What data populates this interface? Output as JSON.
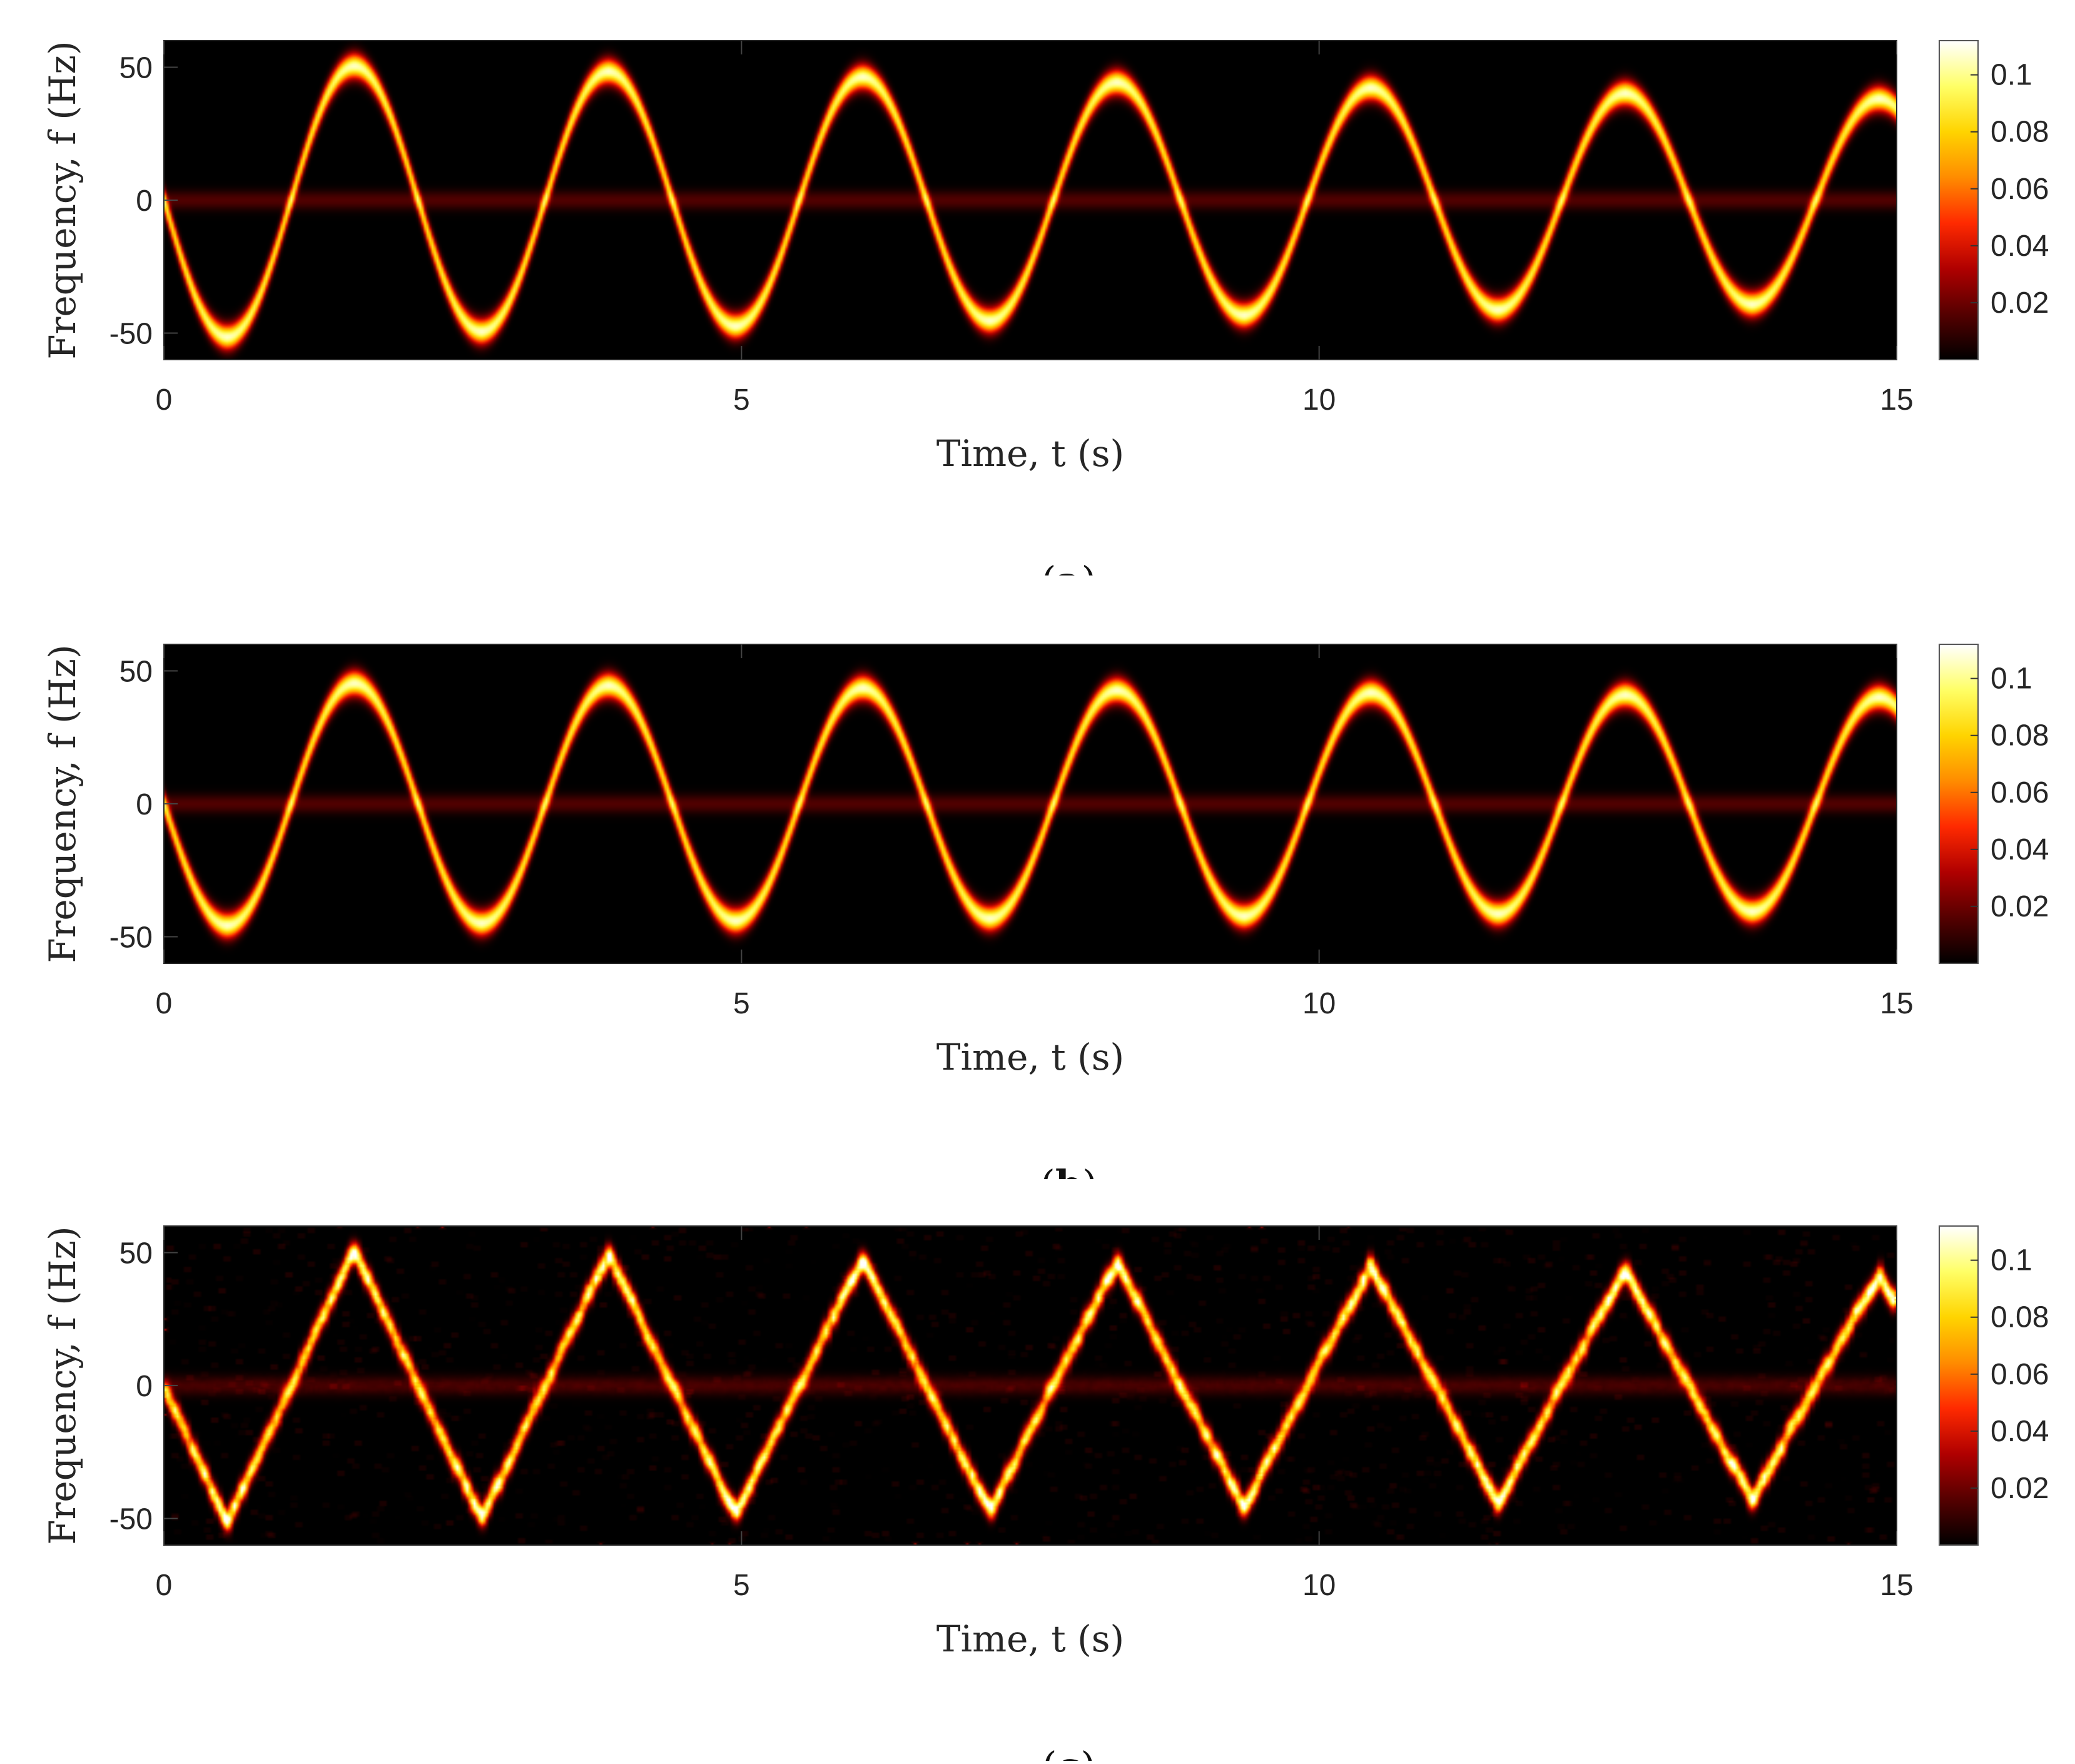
{
  "colors": {
    "background": "#000000",
    "colormap": [
      "#000000",
      "#550000",
      "#b00000",
      "#ff2a00",
      "#ff8c00",
      "#ffd400",
      "#ffff66",
      "#ffffff"
    ]
  },
  "chart_data": [
    {
      "type": "heatmap",
      "caption": "(a)",
      "caption_letter": "a",
      "xlabel": "Time, t (s)",
      "ylabel": "Frequency, f (Hz)",
      "xlim": [
        0,
        15
      ],
      "ylim": [
        -60,
        60
      ],
      "xticks": [
        0,
        5,
        10,
        15
      ],
      "yticks": [
        -50,
        0,
        50
      ],
      "colorbar": {
        "ticks": [
          0.02,
          0.04,
          0.06,
          0.08,
          0.1
        ],
        "range": [
          0,
          0.112
        ]
      },
      "ridge": {
        "shape": "sinusoid",
        "period_s": 2.2,
        "phase": "negative-start",
        "amplitude_start_hz": 52,
        "amplitude_end_hz": 38
      },
      "dc_band": {
        "frequency_hz": 0,
        "intensity": 0.02
      },
      "noise": "none"
    },
    {
      "type": "heatmap",
      "caption": "(b)",
      "caption_letter": "b",
      "xlabel": "Time, t (s)",
      "ylabel": "Frequency, f (Hz)",
      "xlim": [
        0,
        15
      ],
      "ylim": [
        -60,
        60
      ],
      "xticks": [
        0,
        5,
        10,
        15
      ],
      "yticks": [
        -50,
        0,
        50
      ],
      "colorbar": {
        "ticks": [
          0.02,
          0.04,
          0.06,
          0.08,
          0.1
        ],
        "range": [
          0,
          0.112
        ]
      },
      "ridge": {
        "shape": "sinusoid",
        "period_s": 2.2,
        "phase": "negative-start",
        "amplitude_start_hz": 46,
        "amplitude_end_hz": 40
      },
      "dc_band": {
        "frequency_hz": 0,
        "intensity": 0.02
      },
      "noise": "none"
    },
    {
      "type": "heatmap",
      "caption": "(c)",
      "caption_letter": "c",
      "xlabel": "Time, t (s)",
      "ylabel": "Frequency, f (Hz)",
      "xlim": [
        0,
        15
      ],
      "ylim": [
        -60,
        60
      ],
      "xticks": [
        0,
        5,
        10,
        15
      ],
      "yticks": [
        -50,
        0,
        50
      ],
      "colorbar": {
        "ticks": [
          0.02,
          0.04,
          0.06,
          0.08,
          0.1
        ],
        "range": [
          0,
          0.112
        ]
      },
      "ridge": {
        "shape": "triangle-like",
        "period_s": 2.2,
        "phase": "negative-start",
        "amplitude_start_hz": 52,
        "amplitude_end_hz": 42
      },
      "dc_band": {
        "frequency_hz": 0,
        "intensity": 0.015
      },
      "noise": "scattered"
    }
  ]
}
